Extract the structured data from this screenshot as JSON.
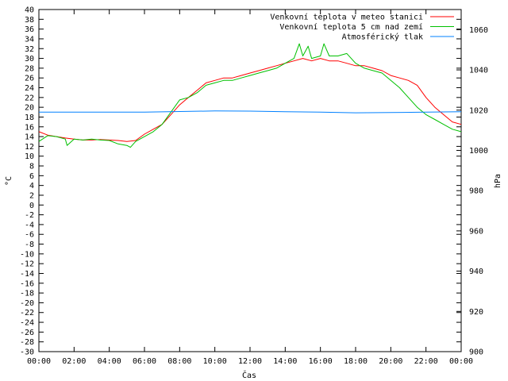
{
  "chart_data": {
    "type": "line",
    "xlabel": "Čas",
    "ylabel": "°C",
    "y2label": "hPa",
    "x_ticks": [
      "00:00",
      "02:00",
      "04:00",
      "06:00",
      "08:00",
      "10:00",
      "12:00",
      "14:00",
      "16:00",
      "18:00",
      "20:00",
      "22:00",
      "00:00"
    ],
    "xlim": [
      0,
      24
    ],
    "ylim": [
      -30,
      40
    ],
    "y_ticks": [
      40,
      38,
      36,
      34,
      32,
      30,
      28,
      26,
      24,
      22,
      20,
      18,
      16,
      14,
      12,
      10,
      8,
      6,
      4,
      2,
      0,
      -2,
      -4,
      -6,
      -8,
      -10,
      -12,
      -14,
      -16,
      -18,
      -20,
      -22,
      -24,
      -26,
      -28,
      -30
    ],
    "y2lim": [
      900,
      1070
    ],
    "y2_ticks": [
      1060,
      1040,
      1020,
      1000,
      980,
      960,
      940,
      920,
      900
    ],
    "grid": false,
    "legend_position": "top-right",
    "series": [
      {
        "name": "Venkovní teplota v meteo stanici",
        "color": "#ff0000",
        "axis": "left",
        "x": [
          0,
          0.5,
          1,
          1.5,
          2,
          2.5,
          3,
          3.5,
          4,
          4.5,
          5,
          5.5,
          6,
          6.5,
          7,
          7.5,
          8,
          8.5,
          9,
          9.5,
          10,
          10.5,
          11,
          11.5,
          12,
          12.5,
          13,
          13.5,
          14,
          14.5,
          15,
          15.5,
          16,
          16.5,
          17,
          17.5,
          18,
          18.5,
          19,
          19.5,
          20,
          20.5,
          21,
          21.5,
          22,
          22.5,
          23,
          23.5,
          24
        ],
        "y": [
          15,
          14.3,
          14,
          13.7,
          13.5,
          13.3,
          13.3,
          13.4,
          13.3,
          13.2,
          13,
          13.2,
          14.5,
          15.5,
          16.5,
          18.5,
          20.5,
          22,
          23.5,
          25,
          25.5,
          26,
          26,
          26.5,
          27,
          27.5,
          28,
          28.5,
          29,
          29.5,
          30,
          29.5,
          30,
          29.5,
          29.5,
          29,
          28.5,
          28.5,
          28,
          27.5,
          26.5,
          26,
          25.5,
          24.5,
          22,
          20,
          18.5,
          17,
          16.5
        ]
      },
      {
        "name": "Venkovní teplota 5 cm nad zemí",
        "color": "#00c000",
        "axis": "left",
        "x": [
          0,
          0.5,
          1,
          1.5,
          1.6,
          2,
          2.5,
          3,
          3.5,
          4,
          4.5,
          5,
          5.2,
          5.5,
          6,
          6.5,
          7,
          7.5,
          8,
          8.5,
          9,
          9.5,
          10,
          10.5,
          11,
          11.5,
          12,
          12.5,
          13,
          13.5,
          14,
          14.5,
          14.8,
          15,
          15.3,
          15.5,
          16,
          16.2,
          16.5,
          17,
          17.5,
          18,
          18.5,
          19,
          19.5,
          20,
          20.5,
          21,
          21.5,
          22,
          22.5,
          23,
          23.5,
          24
        ],
        "y": [
          13,
          14.2,
          14,
          13.5,
          12.2,
          13.5,
          13.3,
          13.5,
          13.3,
          13.2,
          12.5,
          12.2,
          11.8,
          13,
          14,
          15,
          16.5,
          19,
          21.5,
          22,
          23,
          24.5,
          25,
          25.5,
          25.5,
          26,
          26.5,
          27,
          27.5,
          28,
          29,
          30,
          33,
          30.5,
          32.5,
          30,
          30.5,
          33,
          30.5,
          30.5,
          31,
          29,
          28,
          27.5,
          27,
          25.5,
          24,
          22,
          20,
          18.5,
          17.5,
          16.5,
          15.5,
          15
        ]
      },
      {
        "name": "Atmosférický tlak",
        "color": "#0080ff",
        "axis": "right",
        "x": [
          0,
          2,
          4,
          6,
          8,
          10,
          12,
          14,
          16,
          18,
          20,
          22,
          24
        ],
        "y": [
          1019,
          1019,
          1019,
          1019,
          1019.3,
          1019.6,
          1019.5,
          1019.2,
          1019,
          1018.7,
          1018.8,
          1019,
          1019.2
        ]
      }
    ]
  }
}
